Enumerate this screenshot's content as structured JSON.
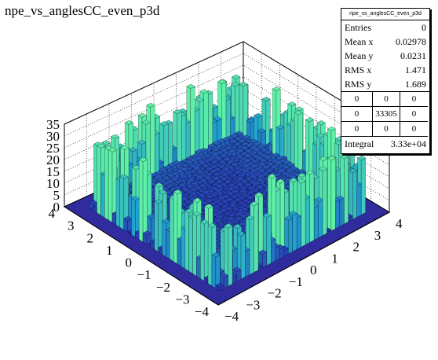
{
  "title": "npe_vs_anglesCC_even_p3d",
  "stats": {
    "name": "npe_vs_anglesCC_even_p3d",
    "rows": [
      {
        "label": "Entries",
        "value": "0"
      },
      {
        "label": "Mean x",
        "value": "0.02978"
      },
      {
        "label": "Mean y",
        "value": "0.0231"
      },
      {
        "label": "RMS x",
        "value": "1.471"
      },
      {
        "label": "RMS y",
        "value": "1.689"
      }
    ],
    "overflow_grid": [
      "0",
      "0",
      "0",
      "0",
      "33305",
      "0",
      "0",
      "0",
      "0"
    ],
    "integral_label": "Integral",
    "integral_value": "3.33e+04"
  },
  "chart_data": {
    "type": "lego",
    "title": "npe_vs_anglesCC_even_p3d",
    "xlim": [
      -4,
      4
    ],
    "ylim": [
      -4,
      4
    ],
    "zlim": [
      0,
      35
    ],
    "x_ticks": [
      -4,
      -3,
      -2,
      -1,
      0,
      1,
      2,
      3,
      4
    ],
    "y_ticks": [
      -4,
      -3,
      -2,
      -1,
      0,
      1,
      2,
      3,
      4
    ],
    "z_ticks": [
      0,
      5,
      10,
      15,
      20,
      25,
      30,
      35
    ],
    "description_rows": "annular distribution peaking near radius ~3 with heights up to ~35, low values near center",
    "grid": true,
    "colors": {
      "floor": "#302c9e",
      "low": "#2a2fb0",
      "mid": "#1f9fcf",
      "high": "#5ff0a8",
      "edge": "#000000"
    }
  }
}
